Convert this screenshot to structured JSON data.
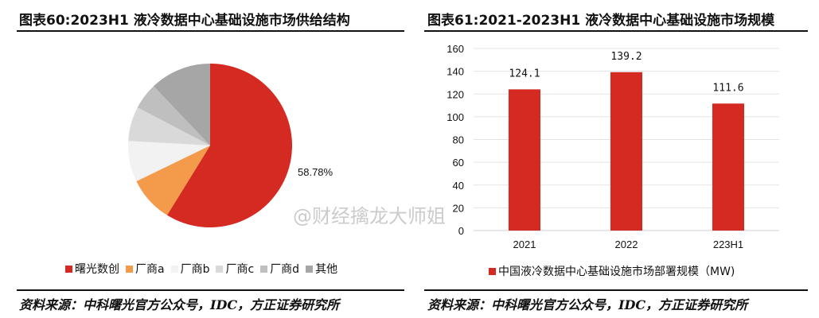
{
  "left": {
    "title": "图表60:2023H1 液冷数据中心基础设施市场供给结构",
    "source": "资料来源：中科曙光官方公众号，IDC，方正证券研究所"
  },
  "right": {
    "title": "图表61:2021-2023H1 液冷数据中心基础设施市场规模",
    "source": "资料来源：中科曙光官方公众号，IDC，方正证券研究所"
  },
  "watermark": "@财经擒龙大师姐",
  "chart_data": [
    {
      "type": "pie",
      "title": "图表60:2023H1 液冷数据中心基础设施市场供给结构",
      "start": "top, clockwise",
      "legend_position": "bottom",
      "slices": [
        {
          "name": "曙光数创",
          "value": 58.78,
          "label": "58.78%",
          "color": "#d42a22"
        },
        {
          "name": "厂商a",
          "value": 9.0,
          "label": "",
          "color": "#f39a4b"
        },
        {
          "name": "厂商b",
          "value": 8.1,
          "label": "",
          "color": "#f2f2f2"
        },
        {
          "name": "厂商c",
          "value": 6.8,
          "label": "",
          "color": "#d9d9d9"
        },
        {
          "name": "厂商d",
          "value": 5.2,
          "label": "",
          "color": "#bfbfbf"
        },
        {
          "name": "其他",
          "value": 12.1,
          "label": "",
          "color": "#a6a6a6"
        }
      ]
    },
    {
      "type": "bar",
      "title": "图表61:2021-2023H1 液冷数据中心基础设施市场规模",
      "categories": [
        "2021",
        "2022",
        "223H1"
      ],
      "series": [
        {
          "name": "中国液冷数据中心基础设施市场部署规模（MW)",
          "values": [
            124.1,
            139.2,
            111.6
          ],
          "labels": [
            "124.1",
            "139.2",
            "111.6"
          ],
          "color": "#d42a22"
        }
      ],
      "ylim": [
        0,
        160
      ],
      "yticks": [
        "0",
        "20",
        "40",
        "60",
        "80",
        "100",
        "120",
        "140",
        "160"
      ],
      "grid": true,
      "legend_position": "bottom"
    }
  ]
}
